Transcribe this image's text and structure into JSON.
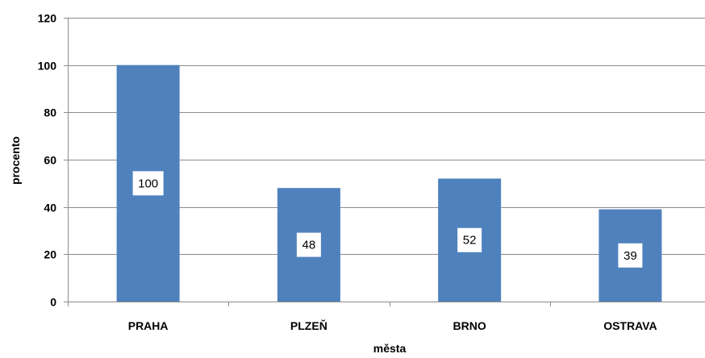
{
  "chart_data": {
    "type": "bar",
    "categories": [
      "PRAHA",
      "PLZEŇ",
      "BRNO",
      "OSTRAVA"
    ],
    "values": [
      100,
      48,
      52,
      39
    ],
    "data_labels": [
      "100",
      "48",
      "52",
      "39"
    ],
    "title": "",
    "xlabel": "města",
    "ylabel": "procento",
    "ylim": [
      0,
      120
    ],
    "yticks": [
      0,
      20,
      40,
      60,
      80,
      100,
      120
    ],
    "grid": true,
    "legend": "none",
    "bar_color": "#4f81bd"
  }
}
